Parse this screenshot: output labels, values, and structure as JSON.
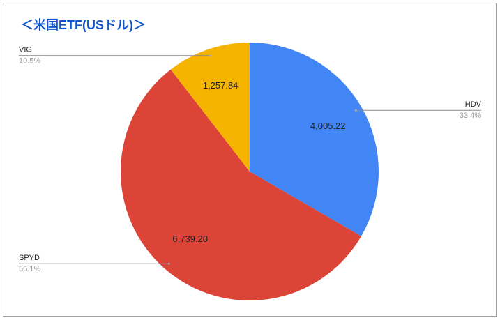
{
  "chart_data": {
    "type": "pie",
    "title": "＜米国ETF(USドル)＞",
    "categories": [
      "HDV",
      "SPYD",
      "VIG"
    ],
    "values": [
      4005.22,
      6739.2,
      1257.84
    ],
    "value_labels": [
      "4,005.22",
      "6,739.20",
      "1,257.84"
    ],
    "percent_labels": [
      "33.4%",
      "56.1%",
      "10.5%"
    ],
    "colors": [
      "#4285f4",
      "#db4437",
      "#f4b400"
    ]
  }
}
